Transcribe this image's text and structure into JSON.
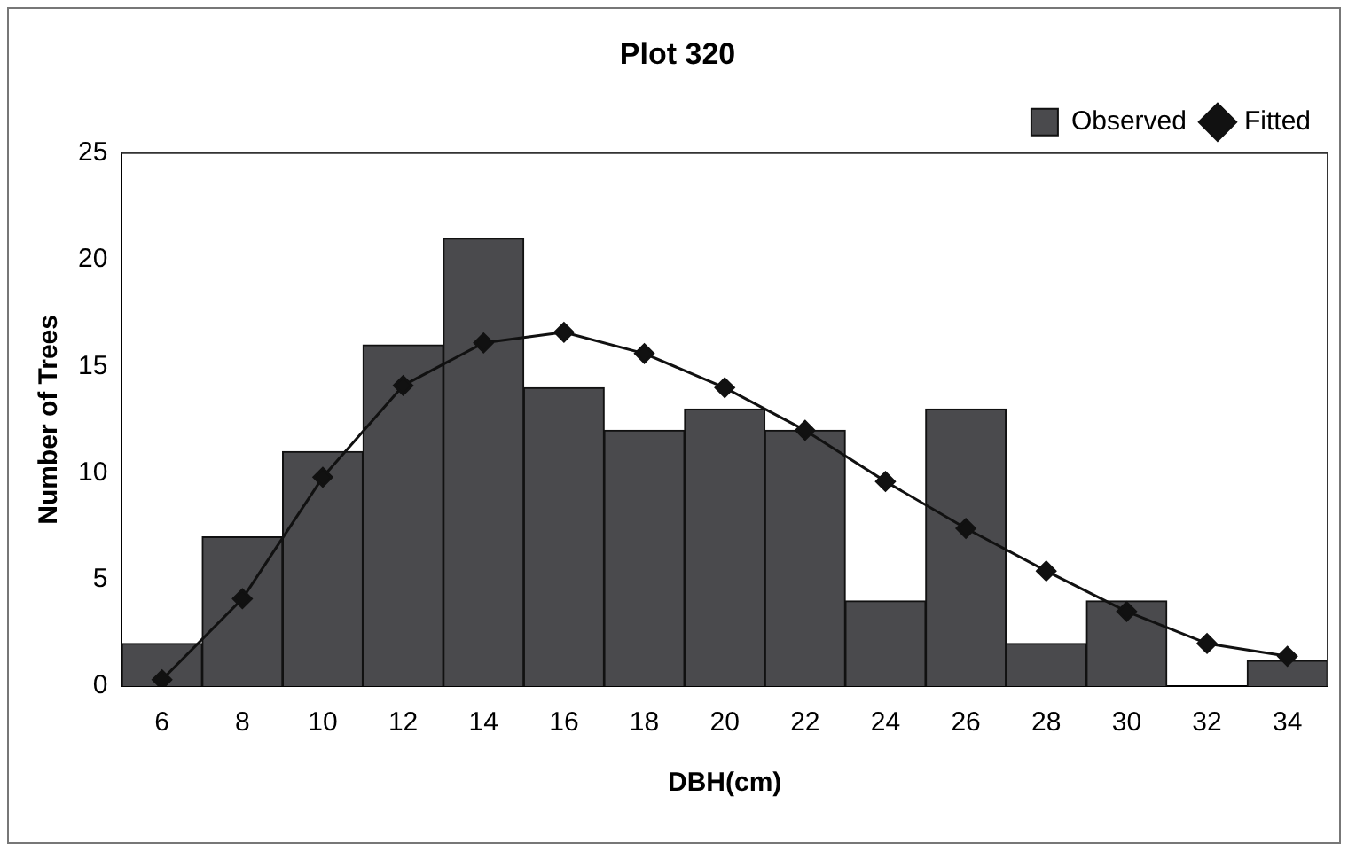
{
  "chart_data": {
    "type": "bar",
    "title": "Plot 320",
    "xlabel": "DBH(cm)",
    "ylabel": "Number of Trees",
    "categories": [
      "6",
      "8",
      "10",
      "12",
      "14",
      "16",
      "18",
      "20",
      "22",
      "24",
      "26",
      "28",
      "30",
      "32",
      "34"
    ],
    "series": [
      {
        "name": "Observed",
        "color": "#4a4a4d",
        "values": [
          2,
          7,
          11,
          16,
          21,
          14,
          12,
          13,
          12,
          4,
          13,
          2,
          4,
          0,
          1.2
        ]
      },
      {
        "name": "Fitted",
        "type": "line",
        "color": "#111111",
        "values": [
          0.3,
          4.1,
          9.8,
          14.1,
          16.1,
          16.6,
          15.6,
          14,
          12,
          9.6,
          7.4,
          5.4,
          3.5,
          2,
          1.4
        ]
      }
    ],
    "ylim": [
      0,
      25
    ],
    "yticks": [
      0,
      5,
      10,
      15,
      20,
      25
    ],
    "grid": false,
    "legend": "top right",
    "marker": "diamond"
  }
}
